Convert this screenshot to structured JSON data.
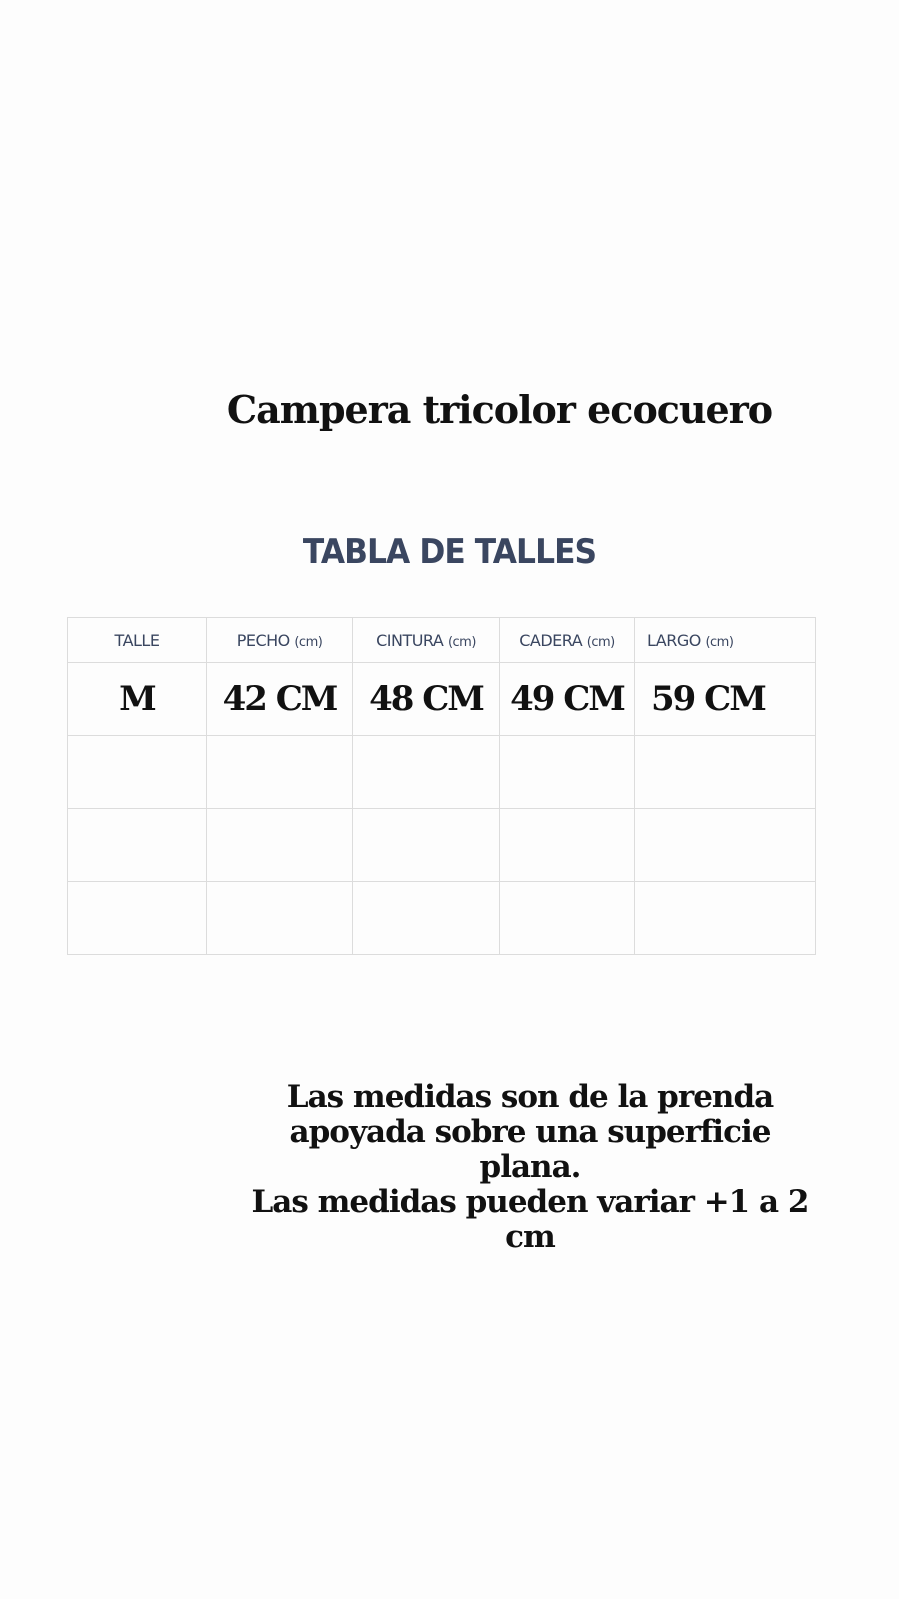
{
  "title": "Campera tricolor ecocuero",
  "subtitle": "TABLA DE TALLES",
  "table": {
    "headers": [
      {
        "label": "TALLE",
        "unit": ""
      },
      {
        "label": "PECHO",
        "unit": "(cm)"
      },
      {
        "label": "CINTURA",
        "unit": "(cm)"
      },
      {
        "label": "CADERA",
        "unit": "(cm)"
      },
      {
        "label": "LARGO",
        "unit": "(cm)"
      }
    ],
    "rows": [
      [
        "M",
        "42 CM",
        "48 CM",
        "49 CM",
        "59 CM"
      ],
      [
        "",
        "",
        "",
        "",
        ""
      ],
      [
        "",
        "",
        "",
        "",
        ""
      ],
      [
        "",
        "",
        "",
        "",
        ""
      ]
    ]
  },
  "note": {
    "line1": "Las medidas son de la prenda apoyada sobre una superficie plana.",
    "line2": "Las medidas pueden variar +1 a 2 cm"
  }
}
